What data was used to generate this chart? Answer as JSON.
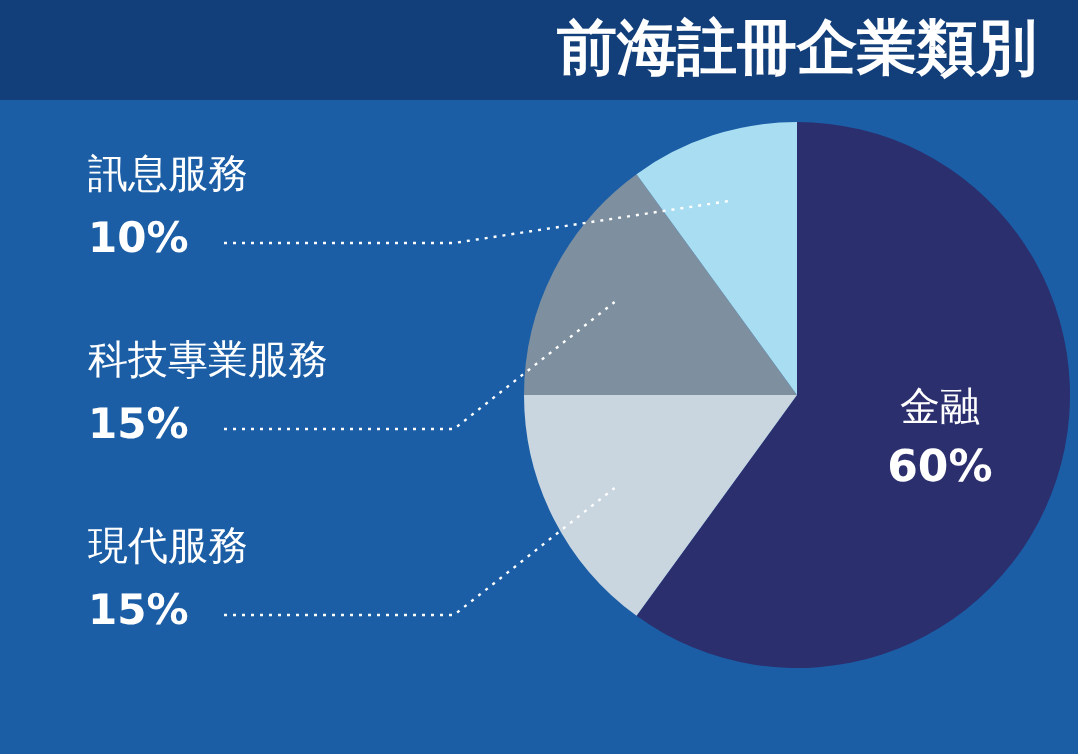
{
  "chart_data": {
    "type": "pie",
    "title": "前海註冊企業類別",
    "categories": [
      "金融",
      "現代服務",
      "科技專業服務",
      "訊息服務"
    ],
    "values": [
      60,
      15,
      15,
      10
    ],
    "value_labels": [
      "60%",
      "15%",
      "15%",
      "10%"
    ],
    "colors": [
      "#2b2f6e",
      "#c9d5df",
      "#7e909f",
      "#a9def2"
    ],
    "legend": false
  }
}
